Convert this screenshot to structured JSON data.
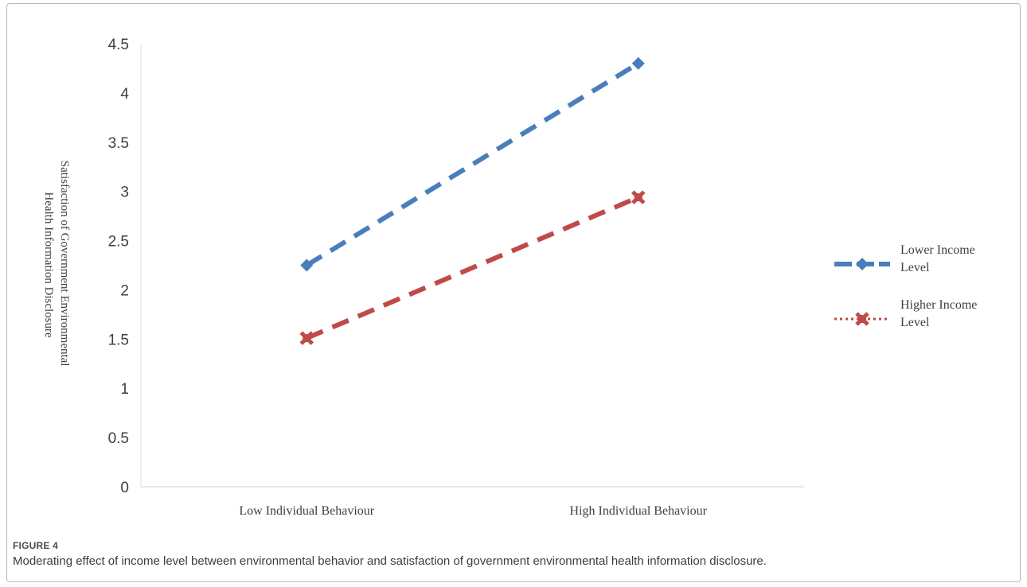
{
  "figure": {
    "label": "FIGURE 4",
    "caption": "Moderating effect of income level between environmental behavior and satisfaction of government environmental health information disclosure."
  },
  "chart_data": {
    "type": "line",
    "categories": [
      "Low Individual Behaviour",
      "High Individual Behaviour"
    ],
    "series": [
      {
        "name_lines": [
          "Lower Income",
          "Level"
        ],
        "values": [
          2.25,
          4.3
        ],
        "color": "#4a7ebb",
        "marker": "diamond"
      },
      {
        "name_lines": [
          "Higher Income",
          "Level"
        ],
        "values": [
          1.51,
          2.94
        ],
        "color": "#be4b48",
        "marker": "x"
      }
    ],
    "ylabel_lines": [
      "Satisfaction of Government Environmental",
      "Health Information Disclosure"
    ],
    "ylim": [
      0,
      4.5
    ],
    "yticks": [
      "0",
      "0.5",
      "1",
      "1.5",
      "2",
      "2.5",
      "3",
      "3.5",
      "4",
      "4.5"
    ],
    "ytick_values": [
      0,
      0.5,
      1,
      1.5,
      2,
      2.5,
      3,
      3.5,
      4,
      4.5
    ],
    "grid": false,
    "legend_position": "right"
  }
}
